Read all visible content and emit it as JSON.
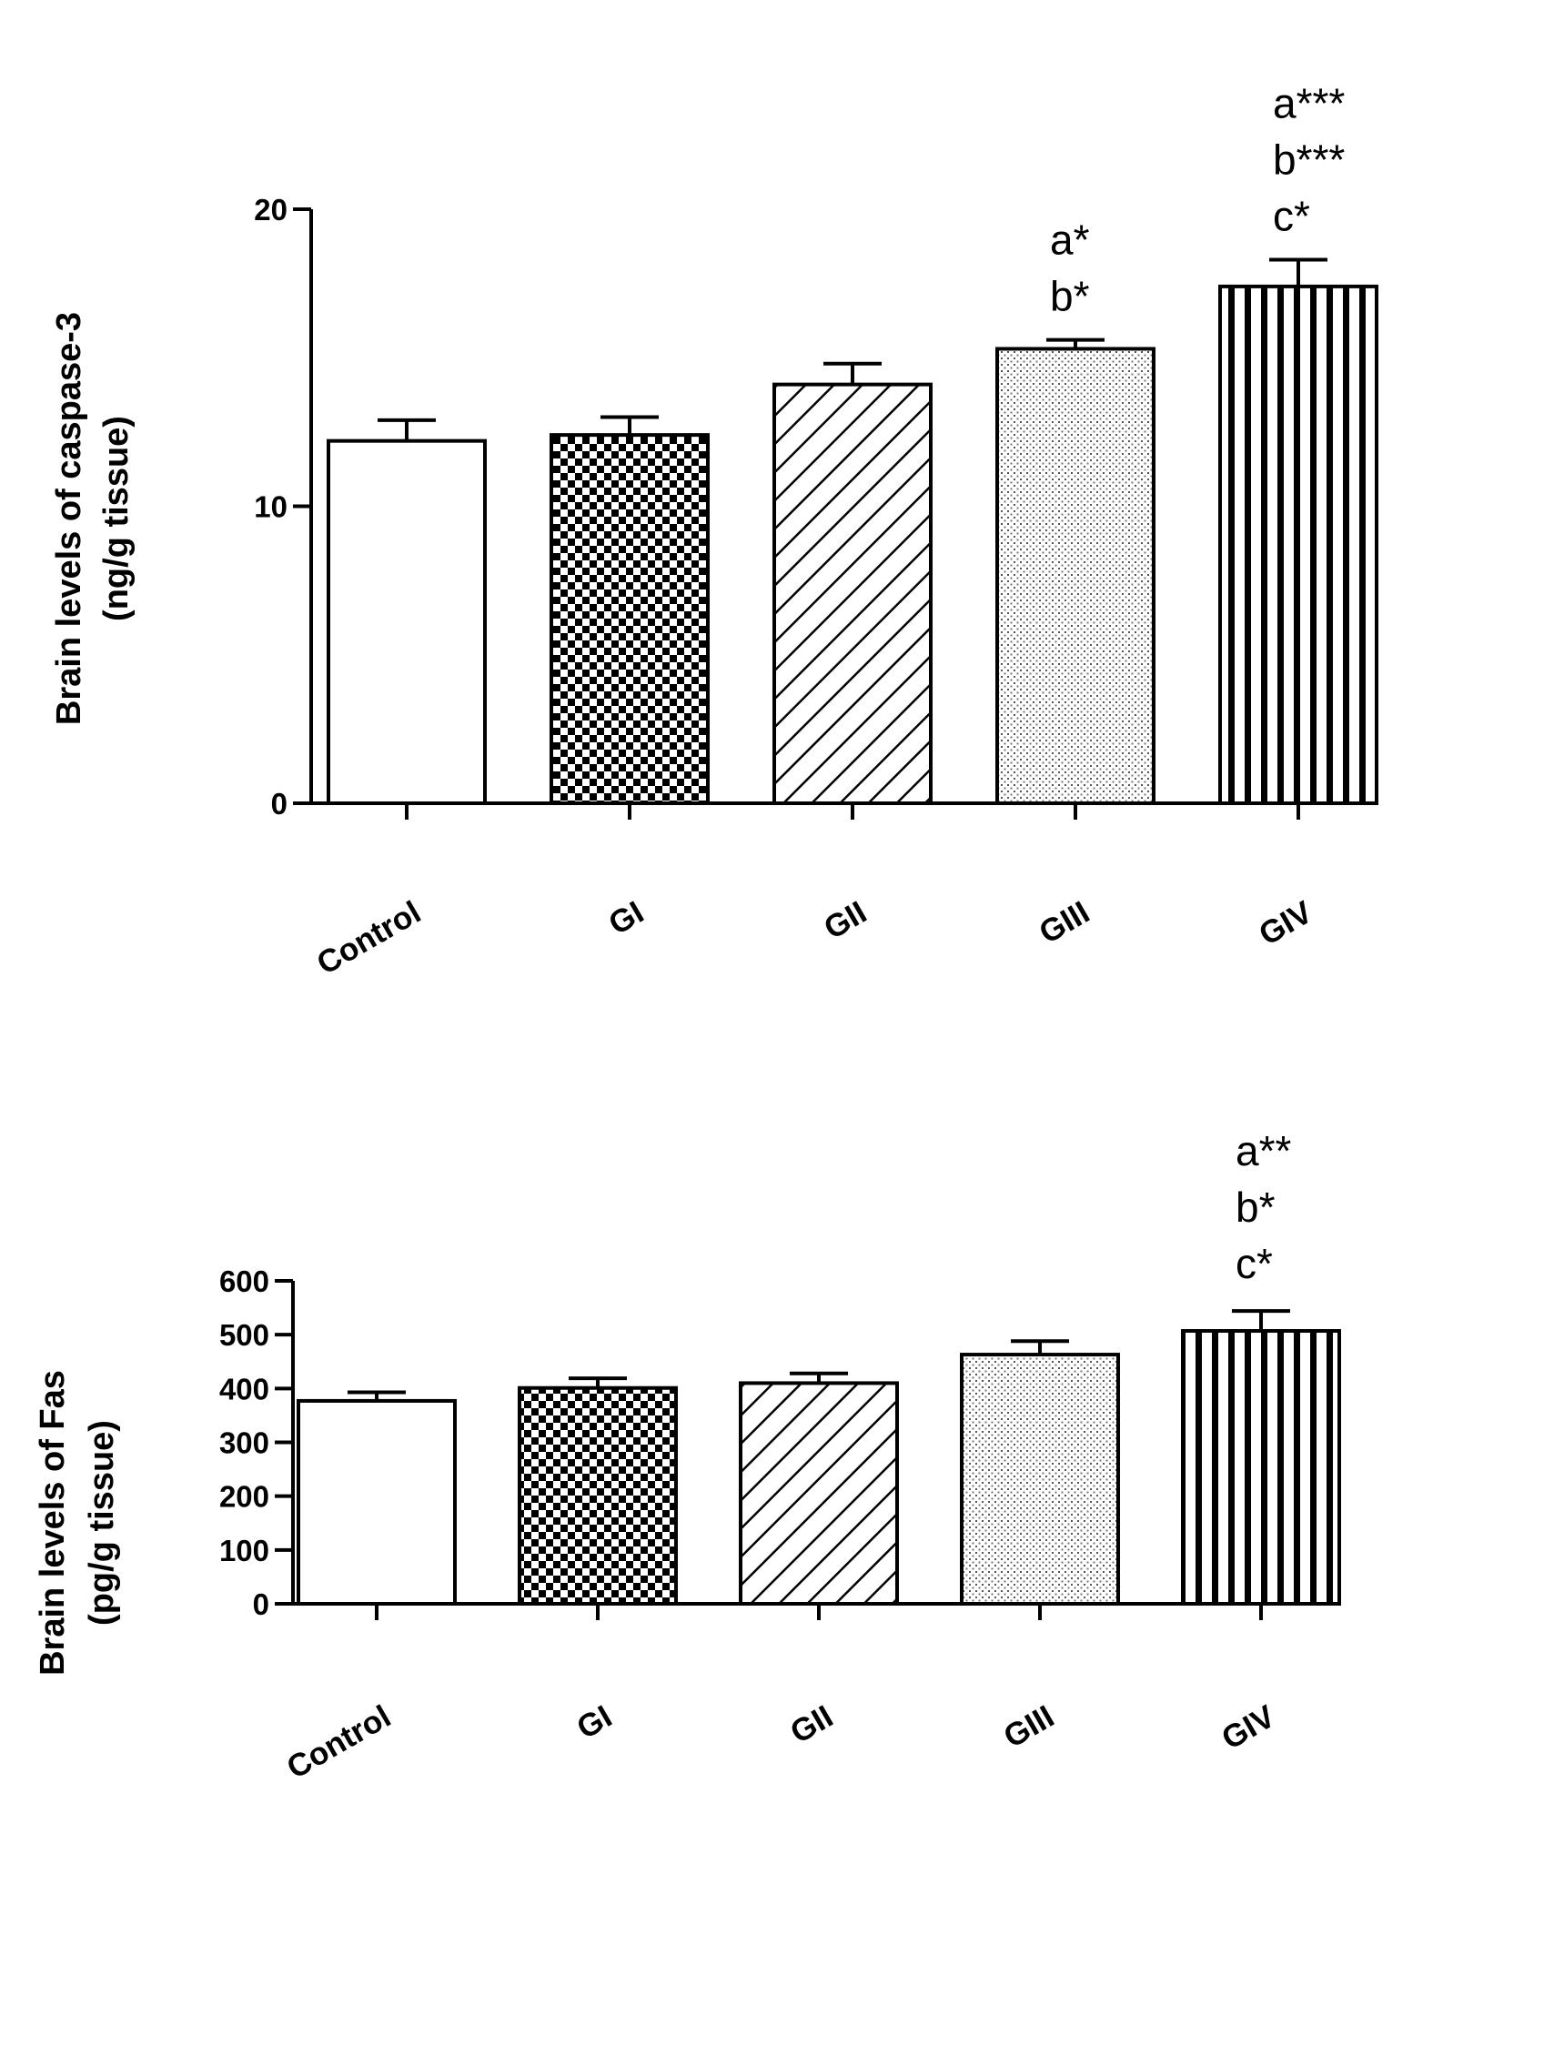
{
  "chart_data": [
    {
      "type": "bar",
      "title": "",
      "xlabel": "",
      "ylabel_lines": [
        "Brain levels of caspase-3",
        "(ng/g tissue)"
      ],
      "categories": [
        "Control",
        "GI",
        "GII",
        "GIII",
        "GIV"
      ],
      "patterns": [
        "open",
        "checker",
        "diagonal",
        "dots",
        "vertical-lines"
      ],
      "values": [
        12.2,
        12.4,
        14.1,
        15.3,
        17.4
      ],
      "errors": [
        0.7,
        0.6,
        0.7,
        0.3,
        0.9
      ],
      "ylim": [
        0,
        20
      ],
      "yticks": [
        0,
        10,
        20
      ],
      "annotations": [
        {
          "category": "GIII",
          "lines": [
            "a*",
            "b*"
          ]
        },
        {
          "category": "GIV",
          "lines": [
            "a***",
            "b***",
            "c*"
          ]
        }
      ]
    },
    {
      "type": "bar",
      "title": "",
      "xlabel": "",
      "ylabel_lines": [
        "Brain levels of Fas",
        "(pg/g tissue)"
      ],
      "categories": [
        "Control",
        "GI",
        "GII",
        "GIII",
        "GIV"
      ],
      "patterns": [
        "open",
        "checker",
        "diagonal",
        "dots",
        "vertical-lines"
      ],
      "values": [
        377,
        401,
        410,
        463,
        507
      ],
      "errors": [
        16,
        18,
        18,
        25,
        37
      ],
      "ylim": [
        0,
        600
      ],
      "yticks": [
        0,
        100,
        200,
        300,
        400,
        500,
        600
      ],
      "annotations": [
        {
          "category": "GIV",
          "lines": [
            "a**",
            "b*",
            "c*"
          ]
        }
      ]
    }
  ]
}
